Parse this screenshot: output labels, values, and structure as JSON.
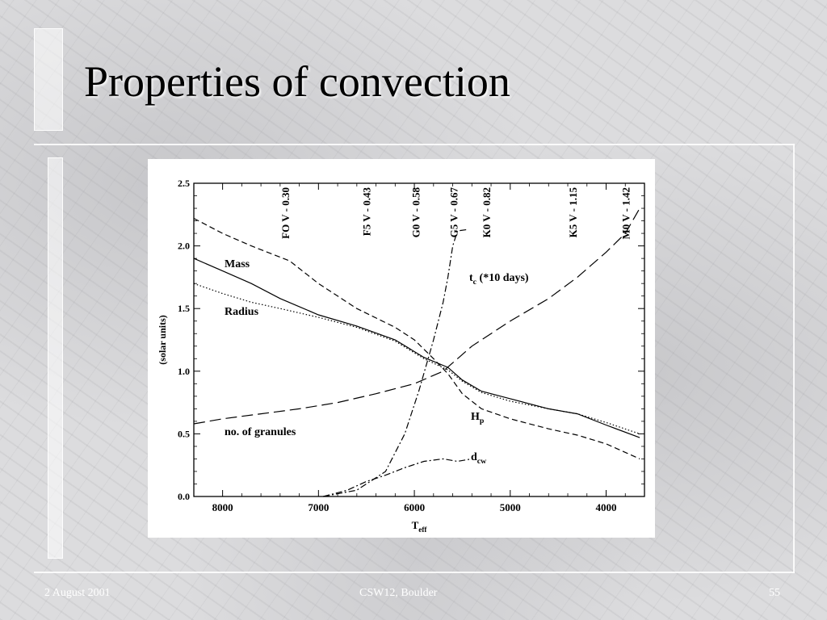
{
  "slide": {
    "title": "Properties of convection",
    "footer_left": "2 August 2001",
    "footer_center": "CSW12, Boulder",
    "footer_right": "55"
  },
  "chart_data": {
    "type": "line",
    "xlabel": "T",
    "xlabel_sub": "eff",
    "ylabel": "(solar units)",
    "xlim": [
      8300,
      3600
    ],
    "ylim": [
      0,
      2.5
    ],
    "x_ticks": [
      8000,
      7000,
      6000,
      5000,
      4000
    ],
    "y_ticks": [
      0.0,
      0.5,
      1.0,
      1.5,
      2.0,
      2.5
    ],
    "y_tick_labels": [
      "0.0",
      "0.5",
      "1.0",
      "1.5",
      "2.0",
      "2.5"
    ],
    "spectral_types": [
      {
        "label": "FO V - 0.30",
        "x": 7350
      },
      {
        "label": "F5 V - 0.43",
        "x": 6500
      },
      {
        "label": "G0 V - 0.58",
        "x": 5990
      },
      {
        "label": "G5 V - 0.67",
        "x": 5590
      },
      {
        "label": "K0 V - 0.82",
        "x": 5250
      },
      {
        "label": "K5 V - 1.15",
        "x": 4350
      },
      {
        "label": "M0 V - 1.42",
        "x": 3800
      }
    ],
    "series": [
      {
        "name": "Mass",
        "style": "solid",
        "x": [
          8300,
          8000,
          7700,
          7400,
          7000,
          6600,
          6200,
          5900,
          5650,
          5500,
          5300,
          5000,
          4600,
          4300,
          4000,
          3650
        ],
        "y": [
          1.9,
          1.8,
          1.7,
          1.58,
          1.45,
          1.36,
          1.25,
          1.11,
          1.03,
          0.93,
          0.84,
          0.78,
          0.7,
          0.66,
          0.57,
          0.47
        ]
      },
      {
        "name": "Radius",
        "style": "dotted",
        "x": [
          8300,
          8000,
          7700,
          7400,
          7000,
          6600,
          6200,
          5900,
          5650,
          5500,
          5300,
          5000,
          4600,
          4300,
          4000,
          3650
        ],
        "y": [
          1.7,
          1.62,
          1.55,
          1.5,
          1.43,
          1.35,
          1.24,
          1.1,
          1.01,
          0.92,
          0.83,
          0.76,
          0.7,
          0.66,
          0.59,
          0.5
        ]
      },
      {
        "name": "H",
        "name_sub": "p",
        "style": "dashed",
        "x": [
          8300,
          8000,
          7700,
          7300,
          7000,
          6600,
          6200,
          6000,
          5800,
          5650,
          5500,
          5300,
          5000,
          4600,
          4300,
          4000,
          3650
        ],
        "y": [
          2.22,
          2.1,
          2.0,
          1.88,
          1.7,
          1.5,
          1.35,
          1.25,
          1.1,
          0.98,
          0.82,
          0.7,
          0.62,
          0.54,
          0.49,
          0.42,
          0.3
        ]
      },
      {
        "name": "no. of granules",
        "style": "longdash",
        "x": [
          8300,
          8000,
          7600,
          7200,
          6800,
          6400,
          6000,
          5700,
          5400,
          5000,
          4600,
          4300,
          4000,
          3800,
          3650
        ],
        "y": [
          0.58,
          0.62,
          0.66,
          0.7,
          0.75,
          0.82,
          0.9,
          1.0,
          1.2,
          1.4,
          1.58,
          1.75,
          1.95,
          2.1,
          2.3
        ]
      },
      {
        "name": "t",
        "name_sub": "c",
        "name_suffix": " (*10 days)",
        "style": "dashdot",
        "x": [
          6950,
          6600,
          6300,
          6100,
          5950,
          5800,
          5700,
          5650,
          5600,
          5550,
          5450
        ],
        "y": [
          0.0,
          0.05,
          0.2,
          0.5,
          0.85,
          1.25,
          1.55,
          1.75,
          2.0,
          2.12,
          2.13
        ]
      },
      {
        "name": "d",
        "name_sub": "cw",
        "style": "dashdot",
        "x": [
          6950,
          6700,
          6500,
          6300,
          6100,
          5900,
          5700,
          5550,
          5400
        ],
        "y": [
          0.0,
          0.05,
          0.12,
          0.17,
          0.23,
          0.28,
          0.3,
          0.28,
          0.3
        ]
      }
    ]
  },
  "colors": {
    "line": "#000000",
    "panel": "#ffffff",
    "footer": "#ffffff"
  }
}
